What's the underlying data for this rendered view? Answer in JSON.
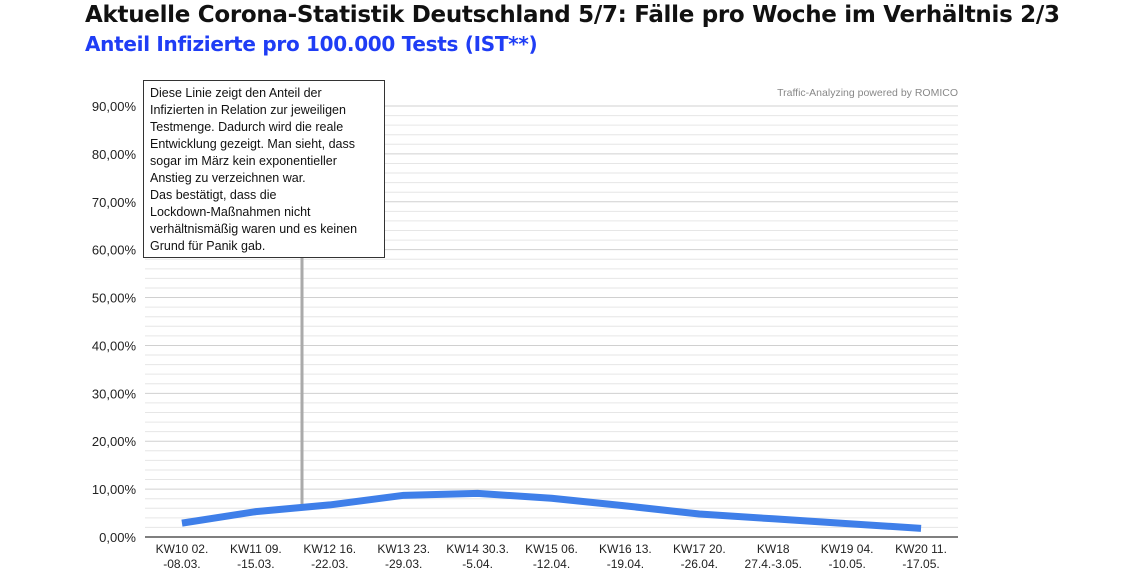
{
  "header": {
    "title": "Aktuelle Corona-Statistik Deutschland 5/7: Fälle pro Woche im Verhältnis 2/3",
    "subtitle": "Anteil Infizierte pro 100.000 Tests (IST**)"
  },
  "annotation": "Diese Linie zeigt den Anteil der\nInfizierten in Relation zur jeweiligen\nTestmenge. Dadurch wird die reale\nEntwicklung gezeigt. Man sieht, dass\nsogar im März kein exponentieller\nAnstieg zu verzeichnen war.\nDas bestätigt, dass die\nLockdown-Maßnahmen nicht\nverhältnismäßig waren und es keinen\nGrund für Panik gab.",
  "chart_data": {
    "type": "line",
    "credit": "Traffic-Analyzing powered by ROMICO",
    "categories": [
      [
        "KW10 02.",
        "-08.03."
      ],
      [
        "KW11 09.",
        "-15.03."
      ],
      [
        "KW12 16.",
        "-22.03."
      ],
      [
        "KW13 23.",
        "-29.03."
      ],
      [
        "KW14 30.3.",
        "-5.04."
      ],
      [
        "KW15 06.",
        "-12.04."
      ],
      [
        "KW16 13.",
        "-19.04."
      ],
      [
        "KW17 20.",
        "-26.04."
      ],
      [
        "KW18",
        "27.4.-3.05."
      ],
      [
        "KW19 04.",
        "-10.05."
      ],
      [
        "KW20 11.",
        "-17.05."
      ]
    ],
    "series": [
      {
        "name": "Anteil Infizierte",
        "values": [
          2.9,
          5.3,
          6.7,
          8.7,
          9.1,
          8.1,
          6.5,
          4.8,
          3.8,
          2.8,
          1.8
        ],
        "color": "#3f7fe9"
      }
    ],
    "ylim": [
      0,
      90
    ],
    "yticks": [
      "0,00%",
      "10,00%",
      "20,00%",
      "30,00%",
      "40,00%",
      "50,00%",
      "60,00%",
      "70,00%",
      "80,00%",
      "90,00%"
    ],
    "annotation_category_index": 2,
    "grid": true
  }
}
